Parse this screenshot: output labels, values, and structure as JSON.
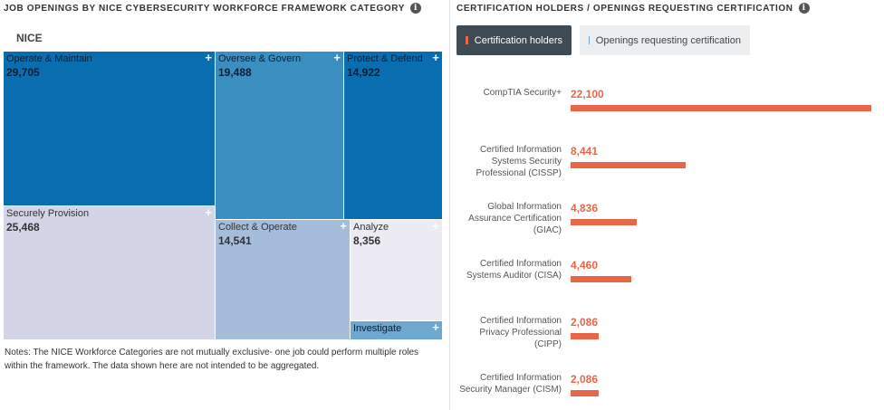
{
  "left_panel": {
    "title": "JOB OPENINGS BY NICE CYBERSECURITY WORKFORCE FRAMEWORK CATEGORY",
    "info_icon": "i",
    "group_label": "NICE",
    "notes": "Notes: The NICE Workforce Categories are not mutually exclusive- one job could perform multiple roles within the framework. The data shown here are not intended to be aggregated."
  },
  "right_panel": {
    "title": "CERTIFICATION HOLDERS / OPENINGS REQUESTING CERTIFICATION",
    "info_icon": "i",
    "legend": {
      "cert_holders": "Certification holders",
      "openings": "Openings requesting certification"
    }
  },
  "colors": {
    "dark_blue": "#096eb0",
    "mid_blue": "#3b8ec0",
    "light_blue": "#a5bcda",
    "lavender": "#d3d4e6",
    "very_light": "#ecebf3",
    "orange": "#e8674a"
  },
  "chart_data": [
    {
      "type": "treemap",
      "group": "NICE",
      "items": [
        {
          "name": "Operate & Maintain",
          "value": 29705,
          "display": "29,705",
          "color": "#096eb0"
        },
        {
          "name": "Securely Provision",
          "value": 25468,
          "display": "25,468",
          "color": "#d3d4e6"
        },
        {
          "name": "Oversee & Govern",
          "value": 19488,
          "display": "19,488",
          "color": "#3b8ec0"
        },
        {
          "name": "Protect & Defend",
          "value": 14922,
          "display": "14,922",
          "color": "#096eb0"
        },
        {
          "name": "Collect & Operate",
          "value": 14541,
          "display": "14,541",
          "color": "#a5bcda"
        },
        {
          "name": "Analyze",
          "value": 8356,
          "display": "8,356",
          "color": "#ecebf3"
        },
        {
          "name": "Investigate",
          "color": "#6ea7d0"
        }
      ]
    },
    {
      "type": "bar",
      "orientation": "horizontal",
      "categories": [
        "CompTIA Security+",
        "Certified Information Systems Security Professional (CISSP)",
        "Global Information Assurance Certification (GIAC)",
        "Certified Information Systems Auditor (CISA)",
        "Certified Information Privacy Professional (CIPP)",
        "Certified Information Security Manager (CISM)"
      ],
      "values": [
        22100,
        8441,
        4836,
        4460,
        2086,
        2086
      ],
      "value_labels": [
        "22,100",
        "8,441",
        "4,836",
        "4,460",
        "2,086",
        "2,086"
      ],
      "max": 22100
    }
  ]
}
